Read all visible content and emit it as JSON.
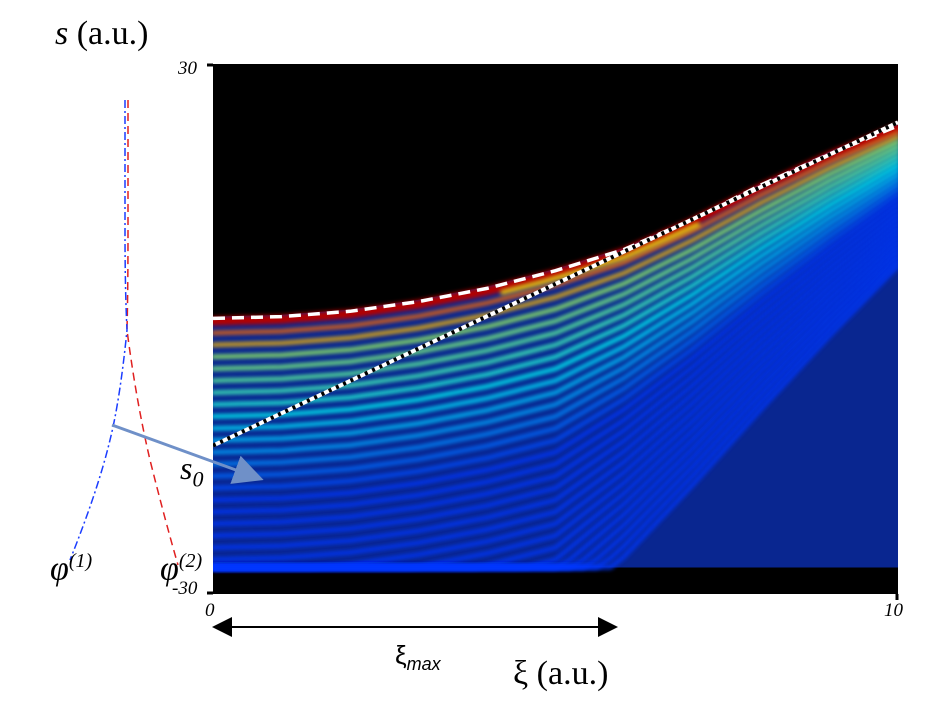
{
  "chart_data": {
    "type": "heatmap",
    "title": "",
    "ylabel_var": "s",
    "ylabel_unit": "(a.u.)",
    "xlabel_var": "ξ",
    "xlabel_unit": "(a.u.)",
    "x_ticks": [
      "0",
      "10"
    ],
    "y_ticks": [
      "30",
      "-30"
    ],
    "xlim": [
      0,
      10
    ],
    "ylim": [
      -30,
      30
    ],
    "colormap": "jet",
    "background": "#000000",
    "annotations": {
      "s0": "s",
      "s0_sub": "0",
      "xi_max": "ξ",
      "xi_max_sub": "max",
      "phi1": "φ",
      "phi1_sup": "(1)",
      "phi2": "φ",
      "phi2_sup": "(2)"
    },
    "curves": [
      {
        "label": "white dashed",
        "color": "#ffffff",
        "x": [
          0,
          1,
          2,
          3,
          4,
          5,
          6,
          7,
          8,
          9,
          10
        ],
        "y": [
          1.2,
          1.4,
          2.0,
          3.1,
          4.6,
          6.6,
          9.0,
          12.4,
          16.3,
          19.8,
          23.0
        ]
      },
      {
        "label": "black dotted (straight line)",
        "color": "#000000",
        "x": [
          0,
          10
        ],
        "y": [
          -13.2,
          23.4
        ]
      }
    ],
    "band_centers": {
      "x": [
        0,
        1,
        2,
        3,
        4,
        5,
        6,
        7,
        8,
        9,
        10
      ],
      "y": [
        0.9,
        1.1,
        1.7,
        2.8,
        4.3,
        6.3,
        8.7,
        12.1,
        16.0,
        19.6,
        22.8
      ]
    },
    "xi_max_value": 5.9,
    "phi_curves": [
      {
        "name": "φ(1)",
        "color": "#1a3cff",
        "style": "dashed"
      },
      {
        "name": "φ(2)",
        "color": "#e02020",
        "style": "dashed"
      }
    ]
  },
  "colors": {
    "arrow_steel": "#6f90c8",
    "phi1": "#1a3cff",
    "phi2": "#e02020"
  }
}
